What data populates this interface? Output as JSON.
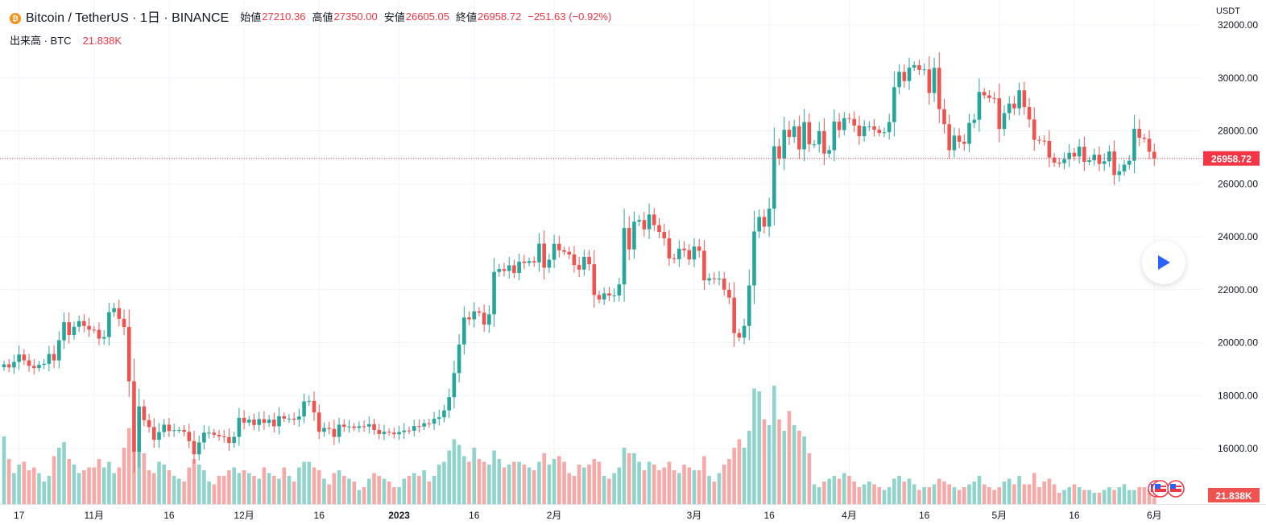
{
  "header": {
    "symbol": "Bitcoin / TetherUS · 1日 · BINANCE",
    "coin_icon": "bitcoin-icon",
    "open_label": "始値",
    "open": "27210.36",
    "high_label": "高値",
    "high": "27350.00",
    "low_label": "安値",
    "low": "26605.05",
    "close_label": "終値",
    "close": "26958.72",
    "change": "−251.63 (−0.92%)"
  },
  "volume_legend": {
    "label": "出来高 · BTC",
    "value": "21.838K"
  },
  "axis_currency": "USDT",
  "play_icon": "play-icon",
  "colors": {
    "up": "#26a69a",
    "down": "#ef5350",
    "up_vol": "#90d3cb",
    "down_vol": "#f7a9a7",
    "label": "#f23645"
  },
  "chart_data": {
    "type": "candlestick",
    "title": "Bitcoin / TetherUS · 1日 · BINANCE",
    "start_date": "2022-10-14",
    "first_open": 19070,
    "closes": [
      19180,
      19060,
      19270,
      19550,
      19330,
      19120,
      19040,
      19160,
      19200,
      19570,
      19330,
      20090,
      20770,
      20290,
      20600,
      20810,
      20630,
      20490,
      20480,
      20150,
      20210,
      21150,
      21300,
      20900,
      20590,
      18540,
      15880,
      17590,
      17070,
      16810,
      16330,
      16620,
      16900,
      16660,
      16690,
      16700,
      16630,
      16280,
      15780,
      16230,
      16600,
      16600,
      16520,
      16460,
      16430,
      16210,
      16440,
      17160,
      16980,
      17090,
      16890,
      17110,
      16970,
      17090,
      16840,
      17220,
      17130,
      17130,
      17090,
      17210,
      17780,
      17800,
      17360,
      16630,
      16780,
      16740,
      16440,
      16900,
      16820,
      16830,
      16780,
      16840,
      16830,
      16920,
      16700,
      16550,
      16630,
      16600,
      16540,
      16620,
      16680,
      16670,
      16850,
      16830,
      16950,
      16940,
      17120,
      17180,
      17440,
      17940,
      18850,
      19930,
      20950,
      20880,
      21180,
      21130,
      20680,
      21070,
      22670,
      22780,
      22710,
      22920,
      22630,
      23060,
      23010,
      23080,
      23030,
      23740,
      22830,
      23130,
      23730,
      23490,
      23430,
      23330,
      22930,
      22760,
      23240,
      22960,
      21800,
      21630,
      21860,
      21780,
      21780,
      22200,
      24330,
      23520,
      24570,
      24630,
      24280,
      24840,
      24440,
      24180,
      23940,
      23180,
      23150,
      23550,
      23490,
      23140,
      23630,
      23470,
      22350,
      22430,
      22410,
      22420,
      22000,
      21700,
      20360,
      20190,
      20630,
      22160,
      24200,
      24750,
      24380,
      25060,
      27420,
      26960,
      28040,
      27770,
      28170,
      27300,
      28330,
      27490,
      27490,
      27990,
      27140,
      27270,
      28350,
      28030,
      28480,
      28450,
      28200,
      27800,
      28170,
      28170,
      28040,
      27920,
      27950,
      28330,
      29650,
      30230,
      29880,
      30390,
      30480,
      30300,
      30320,
      29430,
      30380,
      28820,
      28250,
      27270,
      27820,
      27590,
      27510,
      28300,
      28420,
      29470,
      29340,
      29240,
      29230,
      28070,
      28670,
      29030,
      28850,
      29530,
      28900,
      28430,
      27660,
      27630,
      27620,
      26990,
      26800,
      26780,
      26930,
      27170,
      27030,
      27400,
      26830,
      26890,
      27100,
      26750,
      26850,
      27220,
      26330,
      26470,
      26720,
      26870,
      28080,
      27740,
      27700,
      27210,
      26958.72
    ],
    "volumes_k": [
      240,
      160,
      110,
      140,
      150,
      120,
      130,
      110,
      80,
      100,
      170,
      200,
      220,
      160,
      140,
      110,
      120,
      130,
      130,
      160,
      130,
      150,
      110,
      130,
      200,
      270,
      280,
      230,
      180,
      120,
      110,
      150,
      140,
      120,
      100,
      90,
      80,
      130,
      160,
      140,
      120,
      80,
      70,
      100,
      100,
      120,
      130,
      110,
      120,
      110,
      100,
      90,
      130,
      110,
      100,
      90,
      130,
      100,
      80,
      130,
      150,
      150,
      130,
      120,
      90,
      70,
      110,
      120,
      100,
      90,
      80,
      50,
      60,
      90,
      110,
      100,
      90,
      80,
      60,
      60,
      90,
      100,
      110,
      100,
      120,
      80,
      100,
      140,
      150,
      190,
      230,
      210,
      170,
      150,
      200,
      160,
      150,
      140,
      190,
      160,
      130,
      140,
      150,
      150,
      140,
      130,
      120,
      150,
      180,
      140,
      160,
      170,
      150,
      110,
      100,
      140,
      130,
      140,
      160,
      150,
      100,
      90,
      110,
      130,
      200,
      180,
      180,
      150,
      120,
      150,
      140,
      120,
      130,
      150,
      120,
      110,
      140,
      130,
      120,
      120,
      170,
      100,
      80,
      110,
      140,
      160,
      200,
      230,
      200,
      260,
      410,
      400,
      300,
      280,
      420,
      300,
      260,
      330,
      280,
      260,
      240,
      180,
      70,
      60,
      80,
      90,
      100,
      90,
      110,
      100,
      80,
      60,
      70,
      80,
      70,
      60,
      50,
      60,
      90,
      100,
      80,
      90,
      70,
      50,
      60,
      60,
      70,
      90,
      80,
      70,
      60,
      50,
      60,
      70,
      80,
      100,
      70,
      60,
      50,
      60,
      80,
      90,
      70,
      100,
      70,
      70,
      110,
      60,
      80,
      90,
      70,
      40,
      50,
      60,
      70,
      60,
      50,
      50,
      40,
      40,
      50,
      60,
      50,
      60,
      70,
      50,
      50,
      60,
      60,
      50,
      21.838
    ],
    "ylim": [
      15000,
      32000
    ],
    "y_ticks": [
      "32000.00",
      "30000.00",
      "28000.00",
      "26000.00",
      "24000.00",
      "22000.00",
      "20000.00",
      "18000.00",
      "16000.00"
    ],
    "x_ticks": [
      {
        "label": "17",
        "index": 3
      },
      {
        "label": "11月",
        "index": 18
      },
      {
        "label": "16",
        "index": 33
      },
      {
        "label": "12月",
        "index": 48
      },
      {
        "label": "16",
        "index": 63
      },
      {
        "label": "2023",
        "index": 79
      },
      {
        "label": "16",
        "index": 94
      },
      {
        "label": "2月",
        "index": 110
      },
      {
        "label": "3月",
        "index": 138
      },
      {
        "label": "16",
        "index": 153
      },
      {
        "label": "4月",
        "index": 169
      },
      {
        "label": "16",
        "index": 184
      },
      {
        "label": "5月",
        "index": 199
      },
      {
        "label": "16",
        "index": 214
      },
      {
        "label": "6月",
        "index": 230
      }
    ],
    "last_price_label": "26958.72",
    "last_volume_label": "21.838K"
  }
}
